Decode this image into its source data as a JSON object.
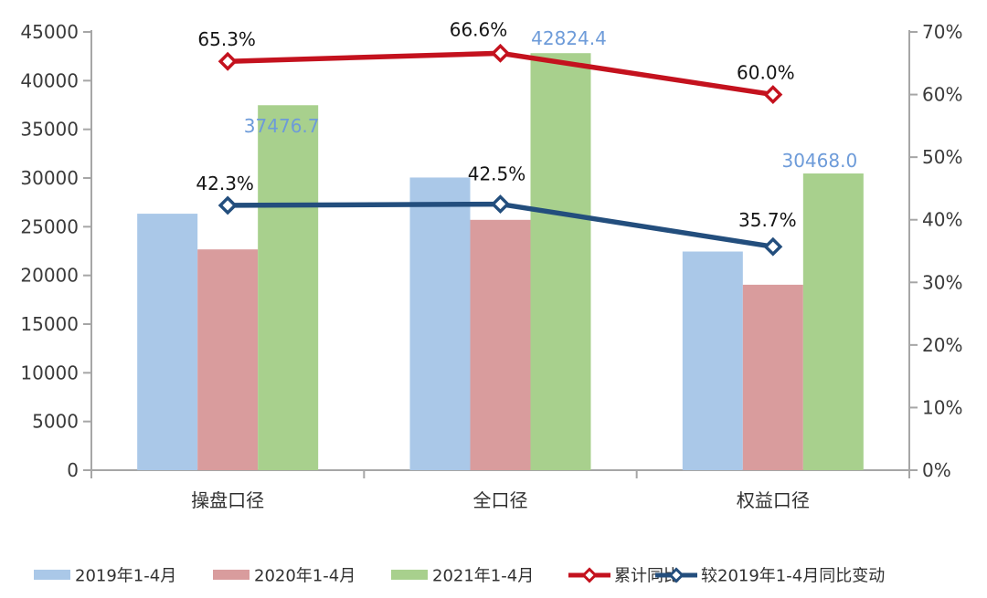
{
  "chart_data": {
    "type": "bar",
    "subtype": "grouped-bar with two line series on secondary percent axis",
    "title": "",
    "categories": [
      "操盘口径",
      "全口径",
      "权益口径"
    ],
    "bar_series": [
      {
        "name": "2019年1-4月",
        "color": "#AAC8E8",
        "values": [
          26337,
          30052,
          22452
        ]
      },
      {
        "name": "2020年1-4月",
        "color": "#D99C9D",
        "values": [
          22672,
          25705,
          19043
        ]
      },
      {
        "name": "2021年1-4月",
        "color": "#A8D08D",
        "values": [
          37476.7,
          42824.4,
          30468.0
        ],
        "labels": [
          "37476.7",
          "42824.4",
          "30468.0"
        ],
        "label_color": "#6D9BD9"
      }
    ],
    "line_series": [
      {
        "name": "累计同比",
        "color": "#C4121E",
        "values": [
          65.3,
          66.6,
          60.0
        ],
        "labels": [
          "65.3%",
          "66.6%",
          "60.0%"
        ]
      },
      {
        "name": "较2019年1-4月同比变动",
        "color": "#234E7D",
        "values": [
          42.3,
          42.5,
          35.7
        ],
        "labels": [
          "42.3%",
          "42.5%",
          "35.7%"
        ]
      }
    ],
    "left_axis": {
      "min": 0,
      "max": 45000,
      "step": 5000,
      "tick_labels": [
        "0",
        "5000",
        "10000",
        "15000",
        "20000",
        "25000",
        "30000",
        "35000",
        "40000",
        "45000"
      ]
    },
    "right_axis": {
      "min": 0,
      "max": 70,
      "step": 10,
      "tick_labels": [
        "0%",
        "10%",
        "20%",
        "30%",
        "40%",
        "50%",
        "60%",
        "70%"
      ]
    },
    "grid": false,
    "legend_position": "bottom",
    "axis_color": "#A6A6A6",
    "background": "#FFFFFF"
  }
}
